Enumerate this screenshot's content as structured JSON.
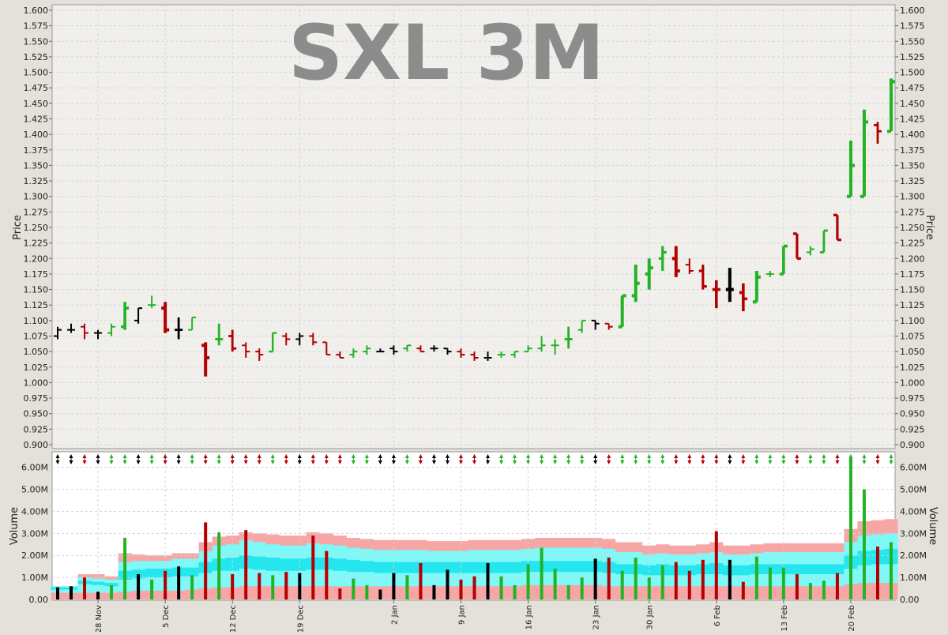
{
  "chart_data": [
    {
      "type": "ohlc",
      "title": "SXL 3M",
      "ylabel": "Price",
      "ylim": [
        0.9,
        1.6
      ],
      "y_ticks": [
        "0.900",
        "0.925",
        "0.950",
        "0.975",
        "1.000",
        "1.025",
        "1.050",
        "1.075",
        "1.100",
        "1.125",
        "1.150",
        "1.175",
        "1.200",
        "1.225",
        "1.250",
        "1.275",
        "1.300",
        "1.325",
        "1.350",
        "1.375",
        "1.400",
        "1.425",
        "1.450",
        "1.475",
        "1.500",
        "1.525",
        "1.550",
        "1.575",
        "1.600"
      ],
      "grid": true,
      "colors": {
        "up": "#22b322",
        "down": "#b30000",
        "flat": "#000000"
      },
      "bars": [
        {
          "o": 1.075,
          "h": 1.09,
          "l": 1.07,
          "c": 1.085,
          "dir": "flat"
        },
        {
          "o": 1.085,
          "h": 1.095,
          "l": 1.08,
          "c": 1.085,
          "dir": "flat"
        },
        {
          "o": 1.09,
          "h": 1.095,
          "l": 1.07,
          "c": 1.08,
          "dir": "down"
        },
        {
          "o": 1.08,
          "h": 1.085,
          "l": 1.07,
          "c": 1.08,
          "dir": "flat"
        },
        {
          "o": 1.08,
          "h": 1.095,
          "l": 1.075,
          "c": 1.09,
          "dir": "up"
        },
        {
          "o": 1.09,
          "h": 1.13,
          "l": 1.085,
          "c": 1.12,
          "dir": "up"
        },
        {
          "o": 1.1,
          "h": 1.12,
          "l": 1.095,
          "c": 1.12,
          "dir": "flat"
        },
        {
          "o": 1.125,
          "h": 1.14,
          "l": 1.12,
          "c": 1.125,
          "dir": "up"
        },
        {
          "o": 1.12,
          "h": 1.13,
          "l": 1.08,
          "c": 1.085,
          "dir": "down"
        },
        {
          "o": 1.085,
          "h": 1.105,
          "l": 1.07,
          "c": 1.085,
          "dir": "flat"
        },
        {
          "o": 1.085,
          "h": 1.105,
          "l": 1.085,
          "c": 1.105,
          "dir": "up"
        },
        {
          "o": 1.06,
          "h": 1.065,
          "l": 1.01,
          "c": 1.04,
          "dir": "down"
        },
        {
          "o": 1.07,
          "h": 1.095,
          "l": 1.06,
          "c": 1.07,
          "dir": "up"
        },
        {
          "o": 1.075,
          "h": 1.085,
          "l": 1.05,
          "c": 1.055,
          "dir": "down"
        },
        {
          "o": 1.06,
          "h": 1.065,
          "l": 1.04,
          "c": 1.05,
          "dir": "down"
        },
        {
          "o": 1.05,
          "h": 1.055,
          "l": 1.035,
          "c": 1.045,
          "dir": "down"
        },
        {
          "o": 1.05,
          "h": 1.08,
          "l": 1.05,
          "c": 1.08,
          "dir": "up"
        },
        {
          "o": 1.075,
          "h": 1.08,
          "l": 1.06,
          "c": 1.07,
          "dir": "down"
        },
        {
          "o": 1.07,
          "h": 1.08,
          "l": 1.06,
          "c": 1.075,
          "dir": "flat"
        },
        {
          "o": 1.075,
          "h": 1.08,
          "l": 1.06,
          "c": 1.065,
          "dir": "down"
        },
        {
          "o": 1.065,
          "h": 1.065,
          "l": 1.045,
          "c": 1.045,
          "dir": "down"
        },
        {
          "o": 1.045,
          "h": 1.05,
          "l": 1.04,
          "c": 1.04,
          "dir": "down"
        },
        {
          "o": 1.045,
          "h": 1.055,
          "l": 1.04,
          "c": 1.05,
          "dir": "up"
        },
        {
          "o": 1.05,
          "h": 1.06,
          "l": 1.045,
          "c": 1.055,
          "dir": "up"
        },
        {
          "o": 1.05,
          "h": 1.055,
          "l": 1.05,
          "c": 1.05,
          "dir": "flat"
        },
        {
          "o": 1.055,
          "h": 1.06,
          "l": 1.045,
          "c": 1.05,
          "dir": "flat"
        },
        {
          "o": 1.055,
          "h": 1.06,
          "l": 1.05,
          "c": 1.06,
          "dir": "up"
        },
        {
          "o": 1.055,
          "h": 1.06,
          "l": 1.05,
          "c": 1.05,
          "dir": "down"
        },
        {
          "o": 1.055,
          "h": 1.06,
          "l": 1.05,
          "c": 1.055,
          "dir": "flat"
        },
        {
          "o": 1.055,
          "h": 1.055,
          "l": 1.045,
          "c": 1.05,
          "dir": "flat"
        },
        {
          "o": 1.05,
          "h": 1.055,
          "l": 1.04,
          "c": 1.045,
          "dir": "down"
        },
        {
          "o": 1.045,
          "h": 1.05,
          "l": 1.035,
          "c": 1.04,
          "dir": "down"
        },
        {
          "o": 1.04,
          "h": 1.05,
          "l": 1.035,
          "c": 1.04,
          "dir": "flat"
        },
        {
          "o": 1.045,
          "h": 1.05,
          "l": 1.04,
          "c": 1.045,
          "dir": "up"
        },
        {
          "o": 1.045,
          "h": 1.05,
          "l": 1.04,
          "c": 1.05,
          "dir": "up"
        },
        {
          "o": 1.05,
          "h": 1.06,
          "l": 1.05,
          "c": 1.055,
          "dir": "up"
        },
        {
          "o": 1.055,
          "h": 1.075,
          "l": 1.05,
          "c": 1.06,
          "dir": "up"
        },
        {
          "o": 1.06,
          "h": 1.07,
          "l": 1.045,
          "c": 1.06,
          "dir": "up"
        },
        {
          "o": 1.07,
          "h": 1.09,
          "l": 1.055,
          "c": 1.07,
          "dir": "up"
        },
        {
          "o": 1.085,
          "h": 1.1,
          "l": 1.08,
          "c": 1.1,
          "dir": "up"
        },
        {
          "o": 1.1,
          "h": 1.1,
          "l": 1.085,
          "c": 1.095,
          "dir": "flat"
        },
        {
          "o": 1.095,
          "h": 1.095,
          "l": 1.085,
          "c": 1.09,
          "dir": "down"
        },
        {
          "o": 1.09,
          "h": 1.14,
          "l": 1.09,
          "c": 1.14,
          "dir": "up"
        },
        {
          "o": 1.14,
          "h": 1.19,
          "l": 1.13,
          "c": 1.16,
          "dir": "up"
        },
        {
          "o": 1.175,
          "h": 1.2,
          "l": 1.15,
          "c": 1.185,
          "dir": "up"
        },
        {
          "o": 1.2,
          "h": 1.22,
          "l": 1.18,
          "c": 1.21,
          "dir": "up"
        },
        {
          "o": 1.2,
          "h": 1.22,
          "l": 1.17,
          "c": 1.18,
          "dir": "down"
        },
        {
          "o": 1.19,
          "h": 1.2,
          "l": 1.175,
          "c": 1.18,
          "dir": "down"
        },
        {
          "o": 1.18,
          "h": 1.19,
          "l": 1.15,
          "c": 1.155,
          "dir": "down"
        },
        {
          "o": 1.15,
          "h": 1.165,
          "l": 1.12,
          "c": 1.15,
          "dir": "down"
        },
        {
          "o": 1.15,
          "h": 1.185,
          "l": 1.13,
          "c": 1.15,
          "dir": "flat"
        },
        {
          "o": 1.145,
          "h": 1.16,
          "l": 1.115,
          "c": 1.135,
          "dir": "down"
        },
        {
          "o": 1.13,
          "h": 1.18,
          "l": 1.13,
          "c": 1.17,
          "dir": "up"
        },
        {
          "o": 1.175,
          "h": 1.18,
          "l": 1.17,
          "c": 1.175,
          "dir": "up"
        },
        {
          "o": 1.175,
          "h": 1.22,
          "l": 1.175,
          "c": 1.22,
          "dir": "up"
        },
        {
          "o": 1.24,
          "h": 1.24,
          "l": 1.2,
          "c": 1.2,
          "dir": "down"
        },
        {
          "o": 1.21,
          "h": 1.22,
          "l": 1.205,
          "c": 1.215,
          "dir": "up"
        },
        {
          "o": 1.21,
          "h": 1.245,
          "l": 1.21,
          "c": 1.245,
          "dir": "up"
        },
        {
          "o": 1.27,
          "h": 1.27,
          "l": 1.23,
          "c": 1.23,
          "dir": "down"
        },
        {
          "o": 1.3,
          "h": 1.39,
          "l": 1.3,
          "c": 1.35,
          "dir": "up"
        },
        {
          "o": 1.3,
          "h": 1.44,
          "l": 1.3,
          "c": 1.42,
          "dir": "up"
        },
        {
          "o": 1.415,
          "h": 1.42,
          "l": 1.385,
          "c": 1.405,
          "dir": "down"
        },
        {
          "o": 1.405,
          "h": 1.49,
          "l": 1.405,
          "c": 1.485,
          "dir": "up"
        }
      ]
    },
    {
      "type": "bar",
      "ylabel": "Volume",
      "ylim": [
        0,
        6.6
      ],
      "y_ticks": [
        "0.00",
        "1.00M",
        "2.00M",
        "3.00M",
        "4.00M",
        "5.00M",
        "6.00M"
      ],
      "x_tick_labels": [
        {
          "i": 3,
          "label": "28 Nov"
        },
        {
          "i": 8,
          "label": "5 Dec"
        },
        {
          "i": 13,
          "label": "12 Dec"
        },
        {
          "i": 18,
          "label": "19 Dec"
        },
        {
          "i": 25,
          "label": "2 Jan"
        },
        {
          "i": 30,
          "label": "9 Jan"
        },
        {
          "i": 35,
          "label": "16 Jan"
        },
        {
          "i": 40,
          "label": "23 Jan"
        },
        {
          "i": 44,
          "label": "30 Jan"
        },
        {
          "i": 49,
          "label": "6 Feb"
        },
        {
          "i": 54,
          "label": "13 Feb"
        },
        {
          "i": 59,
          "label": "20 Feb"
        }
      ],
      "values": [
        0.55,
        0.6,
        1.0,
        0.35,
        0.65,
        2.8,
        1.15,
        0.9,
        1.3,
        1.5,
        1.1,
        3.5,
        3.05,
        1.15,
        3.15,
        1.2,
        1.1,
        1.25,
        1.2,
        2.9,
        2.2,
        0.5,
        0.95,
        0.65,
        0.45,
        1.2,
        1.1,
        1.65,
        0.65,
        1.35,
        0.9,
        1.05,
        1.65,
        1.05,
        0.65,
        1.6,
        2.35,
        1.4,
        0.65,
        1.0,
        1.85,
        1.9,
        1.3,
        1.9,
        1.0,
        1.55,
        1.7,
        1.3,
        1.8,
        3.1,
        1.8,
        0.8,
        1.95,
        1.45,
        1.45,
        1.15,
        0.75,
        0.85,
        1.2,
        6.45,
        5.0,
        2.4,
        2.6
      ],
      "band_pink": [
        0.6,
        0.6,
        1.15,
        1.15,
        1.05,
        2.1,
        2.05,
        2.0,
        2.0,
        2.1,
        2.1,
        2.6,
        2.85,
        2.9,
        3.05,
        3.0,
        2.95,
        2.9,
        2.9,
        3.05,
        3.0,
        2.9,
        2.8,
        2.75,
        2.7,
        2.7,
        2.7,
        2.7,
        2.65,
        2.65,
        2.65,
        2.7,
        2.7,
        2.7,
        2.7,
        2.75,
        2.8,
        2.8,
        2.8,
        2.8,
        2.8,
        2.75,
        2.6,
        2.6,
        2.45,
        2.5,
        2.45,
        2.45,
        2.5,
        2.6,
        2.45,
        2.45,
        2.5,
        2.55,
        2.55,
        2.55,
        2.55,
        2.55,
        2.55,
        3.2,
        3.55,
        3.6,
        3.65
      ],
      "band_cyan_light": [
        0.6,
        0.6,
        1.0,
        0.95,
        0.9,
        1.7,
        1.75,
        1.75,
        1.75,
        1.85,
        1.85,
        2.2,
        2.45,
        2.5,
        2.7,
        2.6,
        2.5,
        2.45,
        2.45,
        2.55,
        2.5,
        2.45,
        2.35,
        2.3,
        2.25,
        2.25,
        2.25,
        2.25,
        2.2,
        2.2,
        2.2,
        2.25,
        2.25,
        2.25,
        2.25,
        2.3,
        2.35,
        2.35,
        2.35,
        2.35,
        2.35,
        2.3,
        2.15,
        2.15,
        2.05,
        2.1,
        2.05,
        2.05,
        2.1,
        2.15,
        2.05,
        2.05,
        2.1,
        2.15,
        2.15,
        2.15,
        2.15,
        2.15,
        2.15,
        2.6,
        2.9,
        2.95,
        3.0
      ],
      "band_cyan_dark": [
        0.55,
        0.55,
        0.85,
        0.8,
        0.75,
        1.3,
        1.35,
        1.4,
        1.4,
        1.45,
        1.45,
        1.7,
        1.85,
        1.9,
        2.0,
        1.95,
        1.9,
        1.85,
        1.85,
        1.9,
        1.9,
        1.85,
        1.8,
        1.75,
        1.7,
        1.7,
        1.7,
        1.7,
        1.7,
        1.7,
        1.7,
        1.7,
        1.7,
        1.7,
        1.7,
        1.75,
        1.75,
        1.75,
        1.75,
        1.75,
        1.75,
        1.7,
        1.6,
        1.6,
        1.55,
        1.6,
        1.55,
        1.55,
        1.6,
        1.65,
        1.55,
        1.55,
        1.6,
        1.6,
        1.6,
        1.6,
        1.6,
        1.6,
        1.6,
        2.0,
        2.2,
        2.25,
        2.3
      ],
      "band_cyan_inner": [
        0.45,
        0.45,
        0.7,
        0.65,
        0.6,
        0.9,
        0.95,
        1.0,
        1.0,
        1.05,
        1.05,
        1.2,
        1.3,
        1.3,
        1.4,
        1.35,
        1.3,
        1.3,
        1.3,
        1.35,
        1.35,
        1.3,
        1.25,
        1.25,
        1.2,
        1.2,
        1.2,
        1.2,
        1.2,
        1.2,
        1.2,
        1.2,
        1.2,
        1.2,
        1.2,
        1.25,
        1.25,
        1.25,
        1.25,
        1.25,
        1.25,
        1.2,
        1.15,
        1.15,
        1.1,
        1.1,
        1.1,
        1.1,
        1.15,
        1.15,
        1.1,
        1.1,
        1.15,
        1.15,
        1.15,
        1.15,
        1.15,
        1.15,
        1.15,
        1.4,
        1.55,
        1.6,
        1.6
      ],
      "band_pink_bottom": [
        0.3,
        0.3,
        0.3,
        0.3,
        0.3,
        0.35,
        0.4,
        0.4,
        0.4,
        0.4,
        0.45,
        0.5,
        0.55,
        0.55,
        0.6,
        0.6,
        0.6,
        0.6,
        0.6,
        0.6,
        0.6,
        0.6,
        0.6,
        0.6,
        0.6,
        0.6,
        0.6,
        0.6,
        0.6,
        0.6,
        0.6,
        0.6,
        0.6,
        0.6,
        0.6,
        0.65,
        0.65,
        0.65,
        0.65,
        0.65,
        0.65,
        0.6,
        0.6,
        0.6,
        0.6,
        0.6,
        0.6,
        0.6,
        0.6,
        0.6,
        0.6,
        0.6,
        0.6,
        0.6,
        0.6,
        0.6,
        0.6,
        0.6,
        0.6,
        0.7,
        0.75,
        0.75,
        0.75
      ]
    }
  ]
}
